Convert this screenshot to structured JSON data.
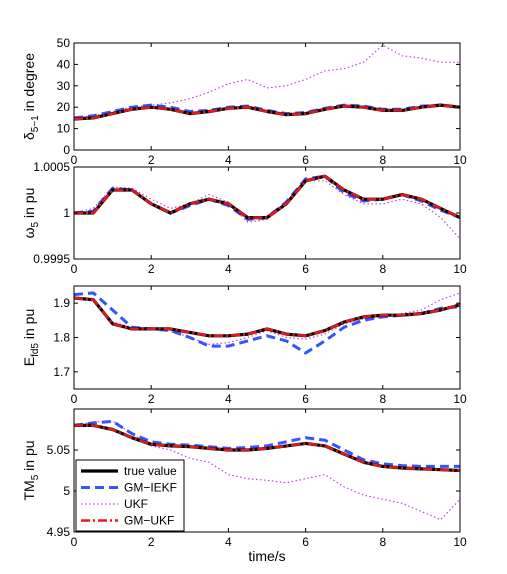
{
  "chart_data": [
    {
      "type": "line",
      "ylabel_main": "δ",
      "ylabel_sub": "5−1",
      "ylabel_rest": " in degree",
      "xlim": [
        0,
        10
      ],
      "ylim": [
        0,
        50
      ],
      "xticks": [
        "0",
        "2",
        "4",
        "6",
        "8",
        "10"
      ],
      "yticks": [
        "0",
        "10",
        "20",
        "30",
        "40",
        "50"
      ],
      "x": [
        0,
        0.5,
        1,
        1.5,
        2,
        2.5,
        3,
        3.5,
        4,
        4.5,
        5,
        5.5,
        6,
        6.5,
        7,
        7.5,
        8,
        8.5,
        9,
        9.5,
        10
      ],
      "series": [
        {
          "name": "true value",
          "values": [
            14.5,
            15,
            17,
            19,
            20,
            19,
            17,
            18,
            19.5,
            20,
            18,
            16.5,
            17,
            19,
            20.5,
            20,
            18.5,
            18.5,
            20,
            21,
            20
          ]
        },
        {
          "name": "GM−IEKF",
          "values": [
            15,
            16,
            18,
            20,
            21,
            20,
            18,
            18.5,
            20,
            20.5,
            18.5,
            17,
            17.5,
            19.5,
            21,
            20.5,
            19,
            19,
            20.5,
            21,
            20
          ]
        },
        {
          "name": "UKF",
          "values": [
            15,
            16,
            18,
            20,
            21,
            22,
            24,
            27,
            31,
            33,
            29,
            30,
            33,
            37,
            38,
            41,
            49,
            44,
            43,
            41,
            41
          ]
        },
        {
          "name": "GM−UKF",
          "values": [
            14.5,
            15,
            17,
            19,
            20,
            19,
            17,
            18,
            19.5,
            20,
            18,
            16.5,
            17,
            19,
            20.5,
            20,
            18.5,
            18.5,
            20,
            21,
            20
          ]
        }
      ]
    },
    {
      "type": "line",
      "ylabel_main": "ω",
      "ylabel_sub": "5",
      "ylabel_rest": " in pu",
      "xlim": [
        0,
        10
      ],
      "ylim": [
        0.9995,
        1.0005
      ],
      "xticks": [
        "0",
        "2",
        "4",
        "6",
        "8",
        "10"
      ],
      "yticks": [
        "0.9995",
        "1",
        "1.0005"
      ],
      "x": [
        0,
        0.5,
        1,
        1.5,
        2,
        2.5,
        3,
        3.5,
        4,
        4.5,
        5,
        5.5,
        6,
        6.5,
        7,
        7.5,
        8,
        8.5,
        9,
        9.5,
        10
      ],
      "series": [
        {
          "name": "true value",
          "values": [
            1.0,
            1.0,
            1.00025,
            1.00025,
            1.0001,
            1.0,
            1.0001,
            1.00015,
            1.0001,
            0.99995,
            0.99995,
            1.0001,
            1.00035,
            1.0004,
            1.00025,
            1.00015,
            1.00015,
            1.0002,
            1.00015,
            1.00005,
            0.99995
          ]
        },
        {
          "name": "GM−IEKF",
          "values": [
            1.0,
            1.00002,
            1.00027,
            1.00025,
            1.0001,
            1.0,
            1.00008,
            1.00015,
            1.00008,
            0.99993,
            0.99995,
            1.00012,
            1.00037,
            1.0004,
            1.00022,
            1.00013,
            1.00015,
            1.0002,
            1.00013,
            1.00003,
            0.99995
          ]
        },
        {
          "name": "UKF",
          "values": [
            1.0,
            1.00005,
            1.00028,
            1.00027,
            1.00015,
            1.00005,
            1.0001,
            1.0002,
            1.00012,
            0.9999,
            0.99993,
            1.0001,
            1.00035,
            1.00035,
            1.0002,
            1.0001,
            1.0001,
            1.00015,
            1.0001,
            0.99995,
            0.99972
          ]
        },
        {
          "name": "GM−UKF",
          "values": [
            1.0,
            1.0,
            1.00025,
            1.00025,
            1.0001,
            1.0,
            1.0001,
            1.00015,
            1.0001,
            0.99995,
            0.99995,
            1.0001,
            1.00035,
            1.0004,
            1.00025,
            1.00015,
            1.00015,
            1.0002,
            1.00015,
            1.00005,
            0.99995
          ]
        }
      ]
    },
    {
      "type": "line",
      "ylabel_main": "E",
      "ylabel_sub": "fd5",
      "ylabel_rest": " in pu",
      "xlim": [
        0,
        10
      ],
      "ylim": [
        1.65,
        1.95
      ],
      "xticks": [
        "0",
        "2",
        "4",
        "6",
        "8",
        "10"
      ],
      "yticks": [
        "1.7",
        "1.8",
        "1.9"
      ],
      "x": [
        0,
        0.5,
        1,
        1.5,
        2,
        2.5,
        3,
        3.5,
        4,
        4.5,
        5,
        5.5,
        6,
        6.5,
        7,
        7.5,
        8,
        8.5,
        9,
        9.5,
        10
      ],
      "series": [
        {
          "name": "true value",
          "values": [
            1.915,
            1.91,
            1.84,
            1.825,
            1.825,
            1.825,
            1.815,
            1.805,
            1.805,
            1.81,
            1.825,
            1.81,
            1.805,
            1.82,
            1.845,
            1.86,
            1.865,
            1.865,
            1.87,
            1.88,
            1.895
          ]
        },
        {
          "name": "GM−IEKF",
          "values": [
            1.925,
            1.93,
            1.88,
            1.83,
            1.825,
            1.82,
            1.8,
            1.775,
            1.775,
            1.79,
            1.805,
            1.79,
            1.755,
            1.79,
            1.83,
            1.85,
            1.86,
            1.865,
            1.87,
            1.885,
            1.89
          ]
        },
        {
          "name": "UKF",
          "values": [
            1.915,
            1.91,
            1.845,
            1.83,
            1.825,
            1.82,
            1.8,
            1.78,
            1.785,
            1.8,
            1.82,
            1.8,
            1.795,
            1.81,
            1.84,
            1.855,
            1.86,
            1.87,
            1.88,
            1.91,
            1.93
          ]
        },
        {
          "name": "GM−UKF",
          "values": [
            1.915,
            1.91,
            1.84,
            1.825,
            1.825,
            1.825,
            1.815,
            1.805,
            1.805,
            1.81,
            1.825,
            1.81,
            1.805,
            1.82,
            1.845,
            1.86,
            1.865,
            1.865,
            1.87,
            1.88,
            1.895
          ]
        }
      ]
    },
    {
      "type": "line",
      "ylabel_main": "TM",
      "ylabel_sub": "5",
      "ylabel_rest": " in pu",
      "xlabel": "time/s",
      "xlim": [
        0,
        10
      ],
      "ylim": [
        4.95,
        5.1
      ],
      "xticks": [
        "0",
        "2",
        "4",
        "6",
        "8",
        "10"
      ],
      "yticks": [
        "4.95",
        "5",
        "5.05"
      ],
      "x": [
        0,
        0.5,
        1,
        1.5,
        2,
        2.5,
        3,
        3.5,
        4,
        4.5,
        5,
        5.5,
        6,
        6.5,
        7,
        7.5,
        8,
        8.5,
        9,
        9.5,
        10
      ],
      "series": [
        {
          "name": "true value",
          "values": [
            5.08,
            5.08,
            5.075,
            5.065,
            5.057,
            5.055,
            5.054,
            5.052,
            5.05,
            5.05,
            5.052,
            5.055,
            5.058,
            5.055,
            5.045,
            5.035,
            5.03,
            5.028,
            5.027,
            5.026,
            5.025
          ]
        },
        {
          "name": "GM−IEKF",
          "values": [
            5.08,
            5.083,
            5.085,
            5.07,
            5.06,
            5.057,
            5.056,
            5.054,
            5.052,
            5.053,
            5.055,
            5.06,
            5.065,
            5.062,
            5.05,
            5.038,
            5.033,
            5.031,
            5.03,
            5.03,
            5.03
          ]
        },
        {
          "name": "UKF",
          "values": [
            5.08,
            5.084,
            5.085,
            5.07,
            5.055,
            5.05,
            5.04,
            5.035,
            5.02,
            5.015,
            5.013,
            5.01,
            5.015,
            5.02,
            5.005,
            4.995,
            4.99,
            4.985,
            4.975,
            4.965,
            4.99
          ]
        },
        {
          "name": "GM−UKF",
          "values": [
            5.08,
            5.08,
            5.075,
            5.065,
            5.057,
            5.055,
            5.054,
            5.052,
            5.05,
            5.05,
            5.052,
            5.055,
            5.058,
            5.055,
            5.045,
            5.035,
            5.03,
            5.028,
            5.027,
            5.026,
            5.025
          ]
        }
      ]
    }
  ],
  "legend": [
    "true value",
    "GM−IEKF",
    "UKF",
    "GM−UKF"
  ],
  "colors": {
    "true value": "#000000",
    "GM−IEKF": "#3355ff",
    "UKF": "#c040dd",
    "GM−UKF": "#e8171c"
  }
}
